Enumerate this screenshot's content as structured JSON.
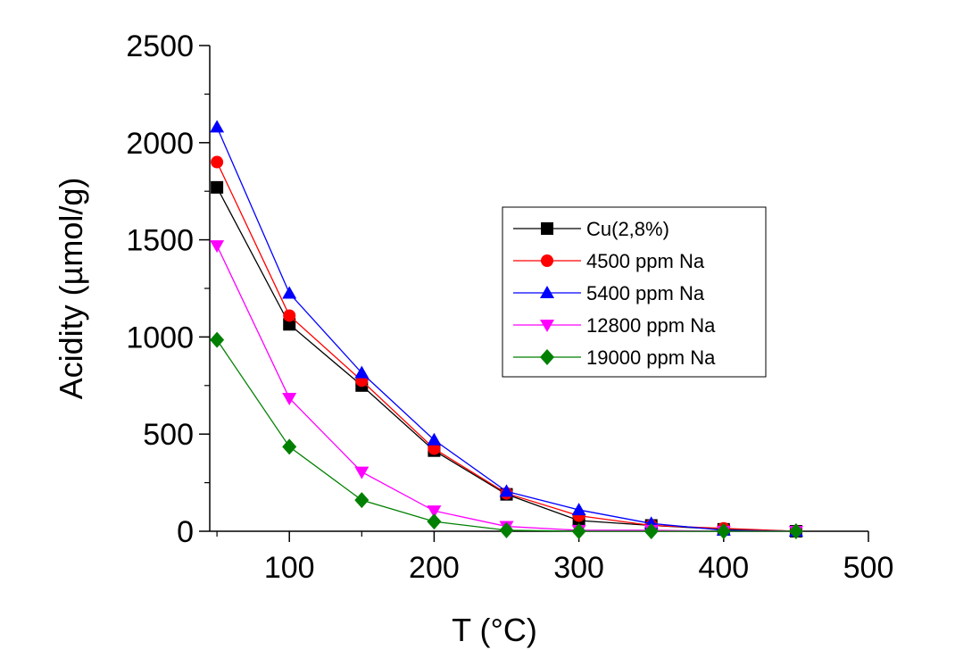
{
  "chart_data": {
    "type": "line",
    "xlabel": "T (°C)",
    "ylabel": "Acidity (µmol/g)",
    "xlim": [
      45,
      500
    ],
    "ylim": [
      0,
      2500
    ],
    "x_ticks": [
      100,
      200,
      300,
      400,
      500
    ],
    "y_ticks": [
      0,
      500,
      1000,
      1500,
      2000,
      2500
    ],
    "x": [
      50,
      100,
      150,
      200,
      250,
      300,
      350,
      400,
      450
    ],
    "legend_position": "center-right",
    "series": [
      {
        "name": "Cu(2,8%)",
        "color": "#000000",
        "marker": "square",
        "values": [
          1770,
          1065,
          750,
          415,
          190,
          55,
          30,
          10,
          0
        ]
      },
      {
        "name": "4500 ppm Na",
        "color": "#ff0000",
        "marker": "circle",
        "values": [
          1900,
          1110,
          775,
          425,
          195,
          80,
          30,
          15,
          0
        ]
      },
      {
        "name": "5400 ppm Na",
        "color": "#0000ff",
        "marker": "triangle-up",
        "values": [
          2080,
          1225,
          815,
          470,
          205,
          110,
          40,
          5,
          0
        ]
      },
      {
        "name": "12800 ppm Na",
        "color": "#ff00ff",
        "marker": "triangle-down",
        "values": [
          1470,
          685,
          305,
          105,
          25,
          5,
          5,
          0,
          0
        ]
      },
      {
        "name": "19000 ppm Na",
        "color": "#008000",
        "marker": "diamond",
        "values": [
          985,
          435,
          160,
          50,
          5,
          0,
          0,
          0,
          0
        ]
      }
    ]
  }
}
